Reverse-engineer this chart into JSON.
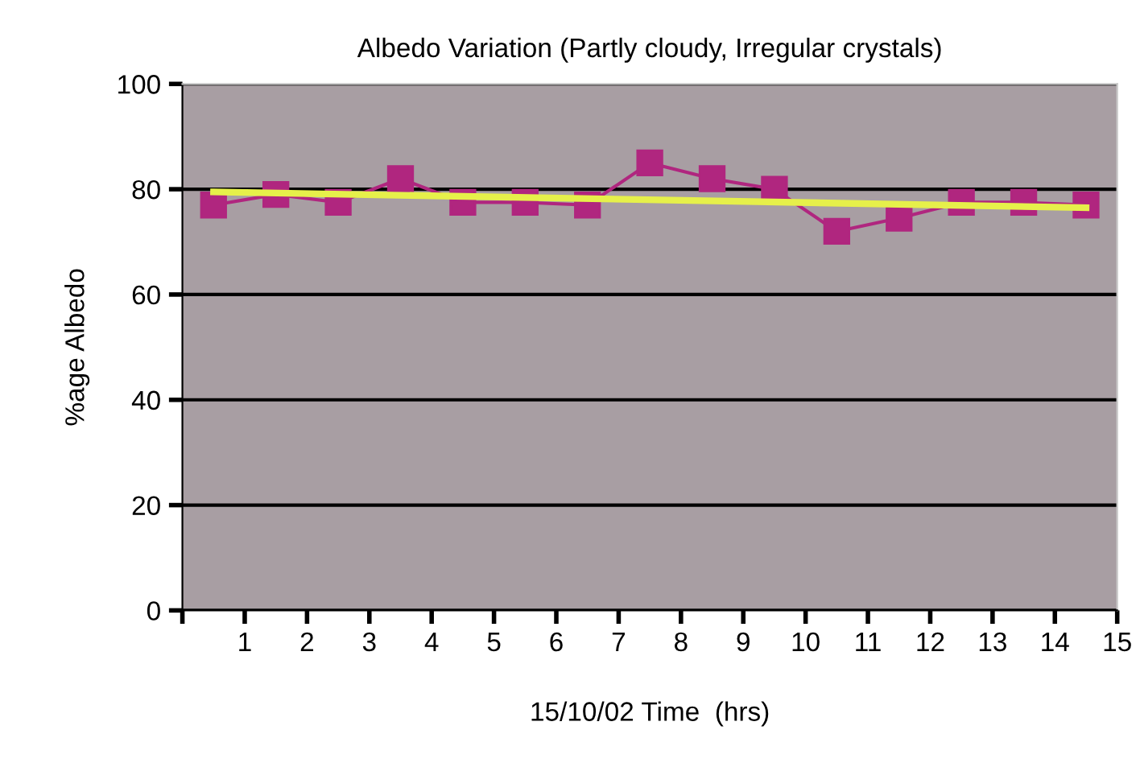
{
  "chart_data": {
    "type": "line",
    "title": "Albedo Variation (Partly cloudy, Irregular crystals)",
    "xlabel": "15/10/02 Time  (hrs)",
    "ylabel": "%age Albedo",
    "x": [
      0.5,
      1.5,
      2.5,
      3.5,
      4.5,
      5.5,
      6.5,
      7.5,
      8.5,
      9.5,
      10.5,
      11.5,
      12.5,
      13.5,
      14.5
    ],
    "series": [
      {
        "color": "#b0267f",
        "marker": "square",
        "values": [
          77,
          79,
          77.5,
          82,
          77.5,
          77.5,
          77,
          85,
          82,
          80,
          72,
          74.5,
          77.5,
          77.5,
          77
        ]
      },
      {
        "type": "line",
        "color": "#e6f04a",
        "marker": "none",
        "x": [
          0.5,
          14.5
        ],
        "values": [
          79.5,
          76.5
        ]
      }
    ],
    "xlim": [
      0,
      15
    ],
    "xticks": [
      {
        "value": 0,
        "label": null
      },
      1,
      2,
      3,
      4,
      5,
      6,
      7,
      8,
      9,
      10,
      11,
      12,
      13,
      14,
      15
    ],
    "ylim": [
      0,
      100
    ],
    "yticks": [
      0,
      20,
      40,
      60,
      80,
      100
    ],
    "grid": "y"
  }
}
